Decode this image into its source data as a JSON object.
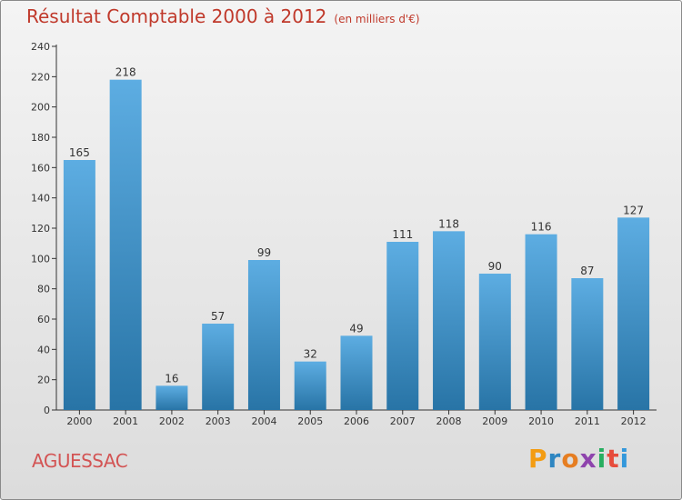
{
  "header": {
    "title": "Résultat Comptable 2000 à 2012",
    "subtitle": "(en milliers d'€)"
  },
  "footer": {
    "place": "AGUESSAC",
    "logo_letters": [
      "P",
      "r",
      "o",
      "x",
      "i",
      "t",
      "i"
    ],
    "logo_colors": [
      "#f39c12",
      "#2e86c1",
      "#e67e22",
      "#8e44ad",
      "#27ae60",
      "#e74c3c",
      "#3498db"
    ]
  },
  "colors": {
    "bar_top": "#5dade2",
    "bar_bottom": "#2874a6",
    "accent": "#c0392b"
  },
  "chart_data": {
    "type": "bar",
    "title": "Résultat Comptable 2000 à 2012",
    "xlabel": "",
    "ylabel": "",
    "categories": [
      "2000",
      "2001",
      "2002",
      "2003",
      "2004",
      "2005",
      "2006",
      "2007",
      "2008",
      "2009",
      "2010",
      "2011",
      "2012"
    ],
    "values": [
      165,
      218,
      16,
      57,
      99,
      32,
      49,
      111,
      118,
      90,
      116,
      87,
      127
    ],
    "ylim": [
      0,
      240
    ],
    "yticks": [
      0,
      20,
      40,
      60,
      80,
      100,
      120,
      140,
      160,
      180,
      200,
      220,
      240
    ],
    "grid": false,
    "legend": "none"
  }
}
